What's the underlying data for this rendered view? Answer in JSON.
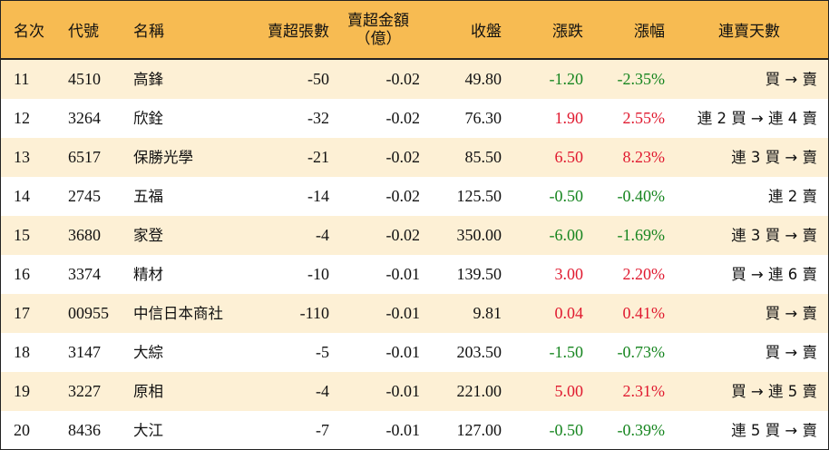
{
  "header": {
    "rank": "名次",
    "code": "代號",
    "name": "名稱",
    "net_sell_lots": "賣超張數",
    "net_sell_amount_line1": "賣超金額",
    "net_sell_amount_line2": "（億）",
    "close": "收盤",
    "change": "漲跌",
    "change_pct": "漲幅",
    "streak": "連賣天數"
  },
  "colors": {
    "header_bg": "#f7bb52",
    "stripe_bg": "#fdf0d5",
    "up": "#e0192f",
    "down": "#16851f"
  },
  "rows": [
    {
      "rank": "11",
      "code": "4510",
      "name": "高鋒",
      "lots": "-50",
      "amount": "-0.02",
      "close": "49.80",
      "change": "-1.20",
      "pct": "-2.35%",
      "streak": "買 → 賣",
      "dir": "down"
    },
    {
      "rank": "12",
      "code": "3264",
      "name": "欣銓",
      "lots": "-32",
      "amount": "-0.02",
      "close": "76.30",
      "change": "1.90",
      "pct": "2.55%",
      "streak": "連 2 買 → 連 4 賣",
      "dir": "up"
    },
    {
      "rank": "13",
      "code": "6517",
      "name": "保勝光學",
      "lots": "-21",
      "amount": "-0.02",
      "close": "85.50",
      "change": "6.50",
      "pct": "8.23%",
      "streak": "連 3 買 → 賣",
      "dir": "up"
    },
    {
      "rank": "14",
      "code": "2745",
      "name": "五福",
      "lots": "-14",
      "amount": "-0.02",
      "close": "125.50",
      "change": "-0.50",
      "pct": "-0.40%",
      "streak": "連 2 賣",
      "dir": "down"
    },
    {
      "rank": "15",
      "code": "3680",
      "name": "家登",
      "lots": "-4",
      "amount": "-0.02",
      "close": "350.00",
      "change": "-6.00",
      "pct": "-1.69%",
      "streak": "連 3 買 → 賣",
      "dir": "down"
    },
    {
      "rank": "16",
      "code": "3374",
      "name": "精材",
      "lots": "-10",
      "amount": "-0.01",
      "close": "139.50",
      "change": "3.00",
      "pct": "2.20%",
      "streak": "買 → 連 6 賣",
      "dir": "up"
    },
    {
      "rank": "17",
      "code": "00955",
      "name": "中信日本商社",
      "lots": "-110",
      "amount": "-0.01",
      "close": "9.81",
      "change": "0.04",
      "pct": "0.41%",
      "streak": "買 → 賣",
      "dir": "up"
    },
    {
      "rank": "18",
      "code": "3147",
      "name": "大綜",
      "lots": "-5",
      "amount": "-0.01",
      "close": "203.50",
      "change": "-1.50",
      "pct": "-0.73%",
      "streak": "買 → 賣",
      "dir": "down"
    },
    {
      "rank": "19",
      "code": "3227",
      "name": "原相",
      "lots": "-4",
      "amount": "-0.01",
      "close": "221.00",
      "change": "5.00",
      "pct": "2.31%",
      "streak": "買 → 連 5 賣",
      "dir": "up"
    },
    {
      "rank": "20",
      "code": "8436",
      "name": "大江",
      "lots": "-7",
      "amount": "-0.01",
      "close": "127.00",
      "change": "-0.50",
      "pct": "-0.39%",
      "streak": "連 5 買 → 賣",
      "dir": "down"
    }
  ]
}
